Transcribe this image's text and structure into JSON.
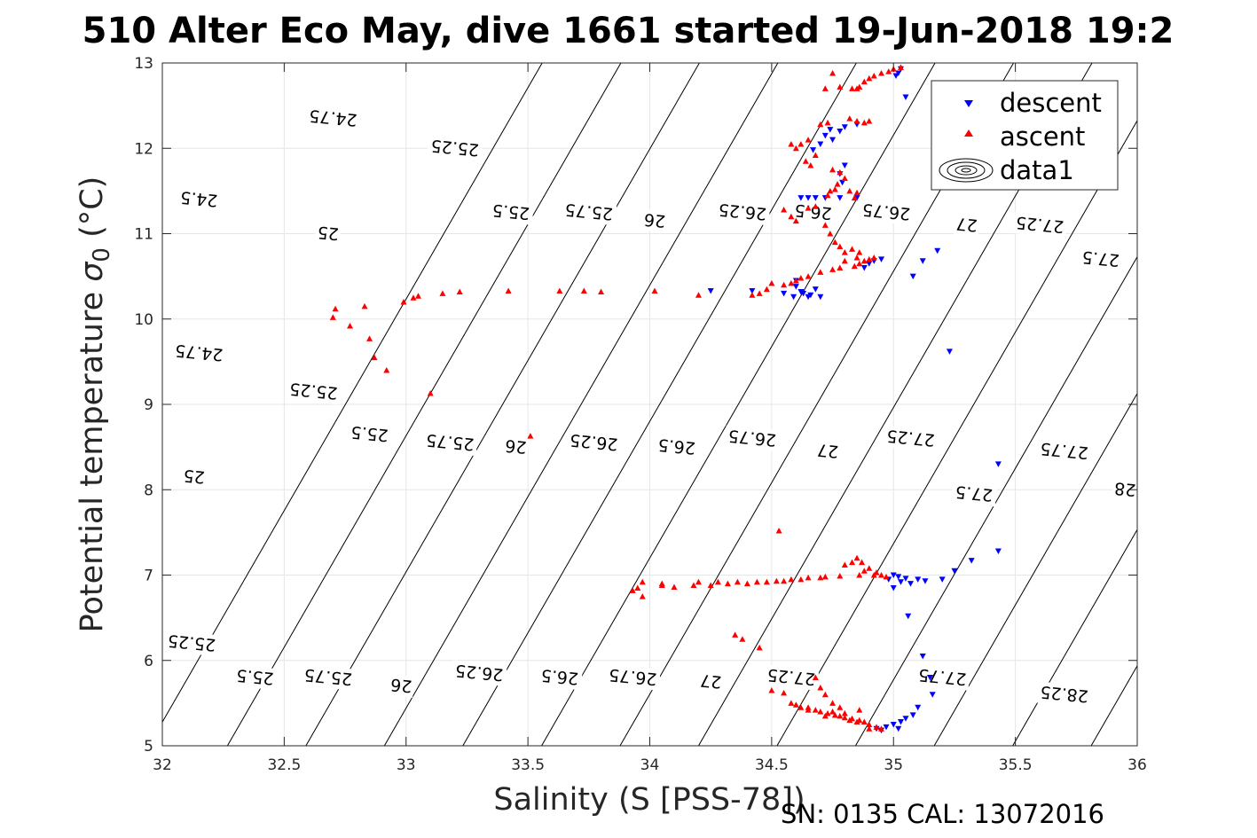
{
  "chart_data": {
    "type": "scatter",
    "title": "510 Alter Eco May, dive 1661 started 19-Jun-2018 19:2",
    "xlabel": "Salinity (S [PSS-78])",
    "ylabel": "Potential temperature σ 0 (°C)",
    "ylabel_main": "Potential temperature ",
    "ylabel_sigma": "σ",
    "ylabel_sub": "0",
    "ylabel_unit": " (°C)",
    "footer": "SN: 0135  CAL: 13072016",
    "xlim": [
      32,
      36
    ],
    "ylim": [
      5,
      13
    ],
    "xticks": [
      "32",
      "32.5",
      "33",
      "33.5",
      "34",
      "34.5",
      "35",
      "35.5",
      "36"
    ],
    "yticks": [
      "5",
      "6",
      "7",
      "8",
      "9",
      "10",
      "11",
      "12",
      "13"
    ],
    "grid": true,
    "legend": {
      "position": "top-right",
      "entries": [
        "descent",
        "ascent",
        "data1"
      ]
    },
    "colors": {
      "descent": "#0000ff",
      "ascent": "#ff0000",
      "contour": "#000000",
      "grid": "#e6e6e6"
    },
    "contours": [
      {
        "sigma": 24.5,
        "s0": 31.944,
        "label": "24.5",
        "label_points": [
          [
            32.15,
            11.4
          ]
        ]
      },
      {
        "sigma": 24.75,
        "s0": 32.267,
        "label": "24.75",
        "label_points": [
          [
            32.7,
            12.35
          ],
          [
            32.15,
            9.6
          ]
        ]
      },
      {
        "sigma": 25,
        "s0": 32.589,
        "label": "25",
        "label_points": [
          [
            32.68,
            11.0
          ],
          [
            32.13,
            8.15
          ]
        ]
      },
      {
        "sigma": 25.25,
        "s0": 32.911,
        "label": "25.25",
        "label_points": [
          [
            33.2,
            12.0
          ],
          [
            32.62,
            9.15
          ],
          [
            32.12,
            6.2
          ]
        ]
      },
      {
        "sigma": 25.5,
        "s0": 33.233,
        "label": "25.5",
        "label_points": [
          [
            33.43,
            11.25
          ],
          [
            32.85,
            8.65
          ],
          [
            32.38,
            5.8
          ]
        ]
      },
      {
        "sigma": 25.75,
        "s0": 33.556,
        "label": "25.75",
        "label_points": [
          [
            33.75,
            11.25
          ],
          [
            33.18,
            8.55
          ],
          [
            32.68,
            5.8
          ]
        ]
      },
      {
        "sigma": 26,
        "s0": 33.878,
        "label": "26",
        "label_points": [
          [
            34.02,
            11.15
          ],
          [
            33.45,
            8.5
          ],
          [
            32.98,
            5.7
          ]
        ]
      },
      {
        "sigma": 26.25,
        "s0": 34.2,
        "label": "26.25",
        "label_points": [
          [
            34.38,
            11.25
          ],
          [
            33.77,
            8.55
          ],
          [
            33.3,
            5.85
          ]
        ]
      },
      {
        "sigma": 26.5,
        "s0": 34.522,
        "label": "26.5",
        "label_points": [
          [
            34.67,
            11.25
          ],
          [
            34.11,
            8.5
          ],
          [
            33.63,
            5.8
          ]
        ]
      },
      {
        "sigma": 26.75,
        "s0": 34.844,
        "label": "26.75",
        "label_points": [
          [
            34.97,
            11.25
          ],
          [
            34.42,
            8.6
          ],
          [
            33.93,
            5.8
          ]
        ]
      },
      {
        "sigma": 27,
        "s0": 35.167,
        "label": "27",
        "label_points": [
          [
            35.3,
            11.1
          ],
          [
            34.73,
            8.45
          ],
          [
            34.25,
            5.75
          ]
        ]
      },
      {
        "sigma": 27.25,
        "s0": 35.489,
        "label": "27.25",
        "label_points": [
          [
            35.6,
            11.1
          ],
          [
            35.07,
            8.6
          ],
          [
            34.58,
            5.8
          ]
        ]
      },
      {
        "sigma": 27.5,
        "s0": 35.811,
        "label": "27.5",
        "label_points": [
          [
            35.85,
            10.7
          ],
          [
            35.33,
            7.95
          ]
        ]
      },
      {
        "sigma": 27.75,
        "s0": 36.133,
        "label": "27.75",
        "label_points": [
          [
            35.7,
            8.45
          ],
          [
            35.2,
            5.8
          ]
        ]
      },
      {
        "sigma": 28,
        "s0": 36.456,
        "label": "28",
        "label_points": [
          [
            35.95,
            8.0
          ]
        ]
      },
      {
        "sigma": 28.25,
        "s0": 36.778,
        "label": "28.25",
        "label_points": [
          [
            35.7,
            5.6
          ]
        ]
      }
    ],
    "series": [
      {
        "name": "descent",
        "marker": "triangle-down",
        "points": [
          [
            35.02,
            12.88
          ],
          [
            35.03,
            12.93
          ],
          [
            35.01,
            12.85
          ],
          [
            35.05,
            12.6
          ],
          [
            34.85,
            12.28
          ],
          [
            34.8,
            12.25
          ],
          [
            34.78,
            12.2
          ],
          [
            34.75,
            12.1
          ],
          [
            34.72,
            12.15
          ],
          [
            34.7,
            12.05
          ],
          [
            34.74,
            12.22
          ],
          [
            34.67,
            11.98
          ],
          [
            34.8,
            11.8
          ],
          [
            34.78,
            11.7
          ],
          [
            34.79,
            11.6
          ],
          [
            34.78,
            11.42
          ],
          [
            34.72,
            11.42
          ],
          [
            34.68,
            11.42
          ],
          [
            34.65,
            11.42
          ],
          [
            34.62,
            11.42
          ],
          [
            34.85,
            11.42
          ],
          [
            34.95,
            10.7
          ],
          [
            34.9,
            10.65
          ],
          [
            34.88,
            10.6
          ],
          [
            34.92,
            10.68
          ],
          [
            35.12,
            10.68
          ],
          [
            35.18,
            10.8
          ],
          [
            35.08,
            10.5
          ],
          [
            34.6,
            10.45
          ],
          [
            34.6,
            10.38
          ],
          [
            34.62,
            10.32
          ],
          [
            34.63,
            10.3
          ],
          [
            34.66,
            10.28
          ],
          [
            34.7,
            10.26
          ],
          [
            34.65,
            10.26
          ],
          [
            34.68,
            10.35
          ],
          [
            34.59,
            10.26
          ],
          [
            34.55,
            10.3
          ],
          [
            34.42,
            10.33
          ],
          [
            34.25,
            10.33
          ],
          [
            35.23,
            9.62
          ],
          [
            35.43,
            8.3
          ],
          [
            35.0,
            7.0
          ],
          [
            34.98,
            6.95
          ],
          [
            35.03,
            6.92
          ],
          [
            35.0,
            6.85
          ],
          [
            35.05,
            6.96
          ],
          [
            35.1,
            6.95
          ],
          [
            35.13,
            6.93
          ],
          [
            35.2,
            6.95
          ],
          [
            35.25,
            7.05
          ],
          [
            35.32,
            7.17
          ],
          [
            35.43,
            7.28
          ],
          [
            35.07,
            6.9
          ],
          [
            35.02,
            6.98
          ],
          [
            35.06,
            6.52
          ],
          [
            35.12,
            6.05
          ],
          [
            35.15,
            5.8
          ],
          [
            35.16,
            5.6
          ],
          [
            35.1,
            5.45
          ],
          [
            34.95,
            5.18
          ],
          [
            34.97,
            5.22
          ],
          [
            35.0,
            5.25
          ],
          [
            35.03,
            5.28
          ],
          [
            35.05,
            5.32
          ],
          [
            35.08,
            5.36
          ],
          [
            35.02,
            5.2
          ],
          [
            34.93,
            5.2
          ]
        ]
      },
      {
        "name": "ascent",
        "marker": "triangle-up",
        "points": [
          [
            35.03,
            12.95
          ],
          [
            35.0,
            12.93
          ],
          [
            34.98,
            12.9
          ],
          [
            34.95,
            12.88
          ],
          [
            34.92,
            12.85
          ],
          [
            34.9,
            12.82
          ],
          [
            34.88,
            12.78
          ],
          [
            34.86,
            12.72
          ],
          [
            34.85,
            12.7
          ],
          [
            34.75,
            12.88
          ],
          [
            34.72,
            12.7
          ],
          [
            34.78,
            12.72
          ],
          [
            34.83,
            12.7
          ],
          [
            34.82,
            12.35
          ],
          [
            34.85,
            12.32
          ],
          [
            34.88,
            12.3
          ],
          [
            34.9,
            12.32
          ],
          [
            34.73,
            12.3
          ],
          [
            34.7,
            12.28
          ],
          [
            34.65,
            12.1
          ],
          [
            34.62,
            12.05
          ],
          [
            34.6,
            12.0
          ],
          [
            34.58,
            12.05
          ],
          [
            34.68,
            11.92
          ],
          [
            34.64,
            11.85
          ],
          [
            34.66,
            11.8
          ],
          [
            34.75,
            11.75
          ],
          [
            34.78,
            11.72
          ],
          [
            34.8,
            11.65
          ],
          [
            34.77,
            11.58
          ],
          [
            34.76,
            11.52
          ],
          [
            34.74,
            11.5
          ],
          [
            34.73,
            11.45
          ],
          [
            34.82,
            11.5
          ],
          [
            34.85,
            11.48
          ],
          [
            34.84,
            11.42
          ],
          [
            34.68,
            11.32
          ],
          [
            34.65,
            11.3
          ],
          [
            34.55,
            11.28
          ],
          [
            34.58,
            11.2
          ],
          [
            34.6,
            11.15
          ],
          [
            34.72,
            11.1
          ],
          [
            34.74,
            11.0
          ],
          [
            34.76,
            10.9
          ],
          [
            34.78,
            10.85
          ],
          [
            34.8,
            10.78
          ],
          [
            34.83,
            10.82
          ],
          [
            34.86,
            10.78
          ],
          [
            34.85,
            10.72
          ],
          [
            34.88,
            10.68
          ],
          [
            34.9,
            10.7
          ],
          [
            34.92,
            10.72
          ],
          [
            34.8,
            10.68
          ],
          [
            34.84,
            10.62
          ],
          [
            34.86,
            10.65
          ],
          [
            34.78,
            10.6
          ],
          [
            34.75,
            10.58
          ],
          [
            34.7,
            10.55
          ],
          [
            34.65,
            10.5
          ],
          [
            34.62,
            10.48
          ],
          [
            34.6,
            10.45
          ],
          [
            34.58,
            10.42
          ],
          [
            34.55,
            10.4
          ],
          [
            34.5,
            10.42
          ],
          [
            34.48,
            10.35
          ],
          [
            34.45,
            10.3
          ],
          [
            34.42,
            10.28
          ],
          [
            34.2,
            10.28
          ],
          [
            34.02,
            10.33
          ],
          [
            33.8,
            10.32
          ],
          [
            33.73,
            10.33
          ],
          [
            33.63,
            10.33
          ],
          [
            33.42,
            10.33
          ],
          [
            33.22,
            10.32
          ],
          [
            33.15,
            10.3
          ],
          [
            33.05,
            10.27
          ],
          [
            33.03,
            10.25
          ],
          [
            32.99,
            10.2
          ],
          [
            32.71,
            10.12
          ],
          [
            32.7,
            10.02
          ],
          [
            32.77,
            9.92
          ],
          [
            32.83,
            10.15
          ],
          [
            32.85,
            9.77
          ],
          [
            32.87,
            9.55
          ],
          [
            32.92,
            9.4
          ],
          [
            33.1,
            9.13
          ],
          [
            33.51,
            8.63
          ],
          [
            34.53,
            7.52
          ],
          [
            34.85,
            7.2
          ],
          [
            34.87,
            7.15
          ],
          [
            34.83,
            7.15
          ],
          [
            34.8,
            7.12
          ],
          [
            34.88,
            7.05
          ],
          [
            34.9,
            7.08
          ],
          [
            34.92,
            7.0
          ],
          [
            34.95,
            7.0
          ],
          [
            34.93,
            7.03
          ],
          [
            34.97,
            6.98
          ],
          [
            34.86,
            7.0
          ],
          [
            34.78,
            6.99
          ],
          [
            34.7,
            6.97
          ],
          [
            34.62,
            6.95
          ],
          [
            34.55,
            6.93
          ],
          [
            34.48,
            6.92
          ],
          [
            34.4,
            6.9
          ],
          [
            34.32,
            6.9
          ],
          [
            34.25,
            6.88
          ],
          [
            34.18,
            6.88
          ],
          [
            34.1,
            6.86
          ],
          [
            34.05,
            6.88
          ],
          [
            33.97,
            6.92
          ],
          [
            33.95,
            6.85
          ],
          [
            33.93,
            6.82
          ],
          [
            33.97,
            6.75
          ],
          [
            34.05,
            6.9
          ],
          [
            34.2,
            6.92
          ],
          [
            34.28,
            6.92
          ],
          [
            34.36,
            6.92
          ],
          [
            34.44,
            6.92
          ],
          [
            34.52,
            6.93
          ],
          [
            34.58,
            6.95
          ],
          [
            34.65,
            6.97
          ],
          [
            34.72,
            6.98
          ],
          [
            34.35,
            6.3
          ],
          [
            34.38,
            6.25
          ],
          [
            34.45,
            6.15
          ],
          [
            34.5,
            5.65
          ],
          [
            34.55,
            5.62
          ],
          [
            34.58,
            5.5
          ],
          [
            34.65,
            5.45
          ],
          [
            34.68,
            5.8
          ],
          [
            34.7,
            5.68
          ],
          [
            34.72,
            5.6
          ],
          [
            34.75,
            5.5
          ],
          [
            34.78,
            5.45
          ],
          [
            34.6,
            5.48
          ],
          [
            34.62,
            5.45
          ],
          [
            34.65,
            5.42
          ],
          [
            34.68,
            5.42
          ],
          [
            34.7,
            5.4
          ],
          [
            34.73,
            5.38
          ],
          [
            34.76,
            5.36
          ],
          [
            34.8,
            5.33
          ],
          [
            34.83,
            5.32
          ],
          [
            34.86,
            5.3
          ],
          [
            34.88,
            5.28
          ],
          [
            34.9,
            5.25
          ],
          [
            34.93,
            5.22
          ],
          [
            34.85,
            5.28
          ],
          [
            34.8,
            5.38
          ],
          [
            34.86,
            5.42
          ],
          [
            34.75,
            5.4
          ],
          [
            34.78,
            5.35
          ],
          [
            34.82,
            5.3
          ],
          [
            34.72,
            5.35
          ],
          [
            34.95,
            5.2
          ],
          [
            34.9,
            5.2
          ]
        ]
      }
    ]
  }
}
